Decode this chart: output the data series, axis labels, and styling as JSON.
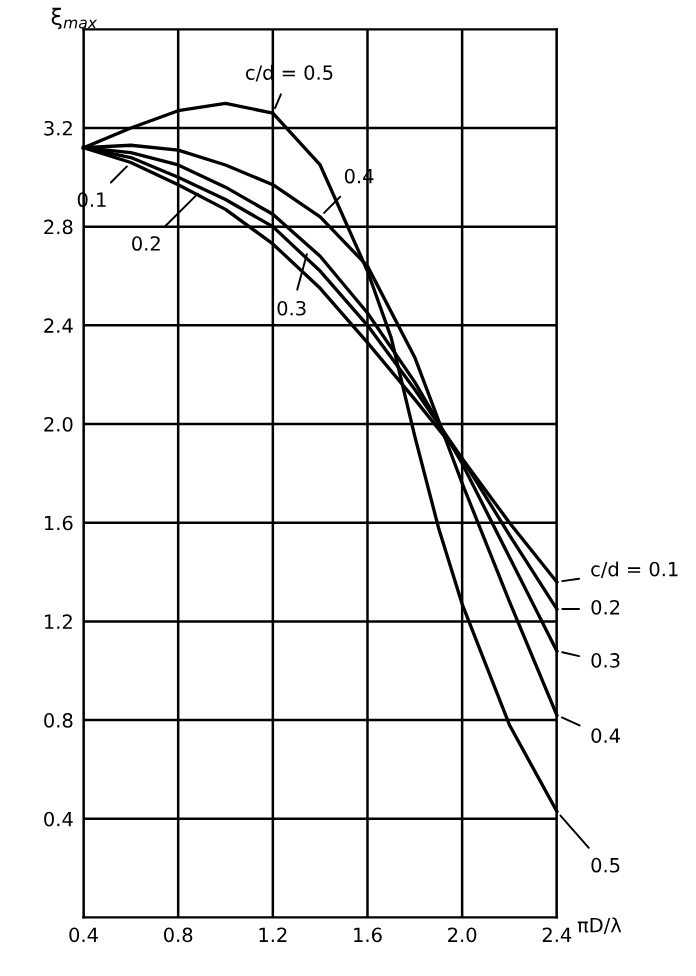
{
  "chart_data": {
    "type": "line",
    "xlabel": "πD/λ",
    "ylabel": "ξ$_{max}$",
    "x": [
      0.4,
      0.6,
      0.8,
      1.0,
      1.2,
      1.4,
      1.6,
      1.8,
      2.0,
      2.2,
      2.4
    ],
    "series": [
      {
        "name": "c/d = 0.1",
        "color": "#000000",
        "values": [
          3.12,
          3.06,
          2.97,
          2.87,
          2.73,
          2.55,
          2.33,
          2.1,
          1.86,
          1.6,
          1.36
        ]
      },
      {
        "name": "0.2",
        "color": "#000000",
        "values": [
          3.12,
          3.08,
          3.0,
          2.91,
          2.8,
          2.62,
          2.4,
          2.14,
          1.86,
          1.55,
          1.25
        ]
      },
      {
        "name": "0.3",
        "color": "#000000",
        "values": [
          3.12,
          3.1,
          3.05,
          2.96,
          2.85,
          2.68,
          2.45,
          2.17,
          1.84,
          1.46,
          1.08
        ]
      },
      {
        "name": "0.4",
        "color": "#000000",
        "values": [
          3.12,
          3.13,
          3.11,
          3.05,
          2.97,
          2.84,
          2.64,
          2.27,
          1.76,
          1.28,
          0.82
        ]
      },
      {
        "name": "0.5",
        "color": "#000000",
        "x": [
          0.4,
          0.6,
          0.8,
          1.0,
          1.2,
          1.4,
          1.6,
          1.7,
          1.8,
          1.9,
          2.0,
          2.2,
          2.4
        ],
        "values": [
          3.12,
          3.2,
          3.27,
          3.3,
          3.26,
          3.05,
          2.62,
          2.35,
          1.95,
          1.58,
          1.27,
          0.78,
          0.43
        ]
      }
    ],
    "annotations": [
      {
        "text": "c/d = 0.5",
        "x": 1.2,
        "y": 3.26
      },
      {
        "text": "0.4",
        "x": 1.4,
        "y": 2.84
      },
      {
        "text": "0.1",
        "x": 0.6,
        "y": 3.06
      },
      {
        "text": "0.2",
        "x": 0.9,
        "y": 2.95
      },
      {
        "text": "0.3",
        "x": 1.35,
        "y": 2.71
      }
    ],
    "xlim": [
      0.4,
      2.4
    ],
    "ylim": [
      0,
      3.6
    ],
    "xticks": [
      0.4,
      0.8,
      1.2,
      1.6,
      {
        "value": 2,
        "label": "2.0"
      },
      2.4
    ],
    "yticks": [
      0.4,
      0.8,
      1.2,
      1.6,
      {
        "value": 2,
        "label": "2.0"
      },
      2.4,
      2.8,
      3.2
    ],
    "grid": true,
    "legend": "right",
    "marker": "none",
    "line_style": "solid"
  }
}
